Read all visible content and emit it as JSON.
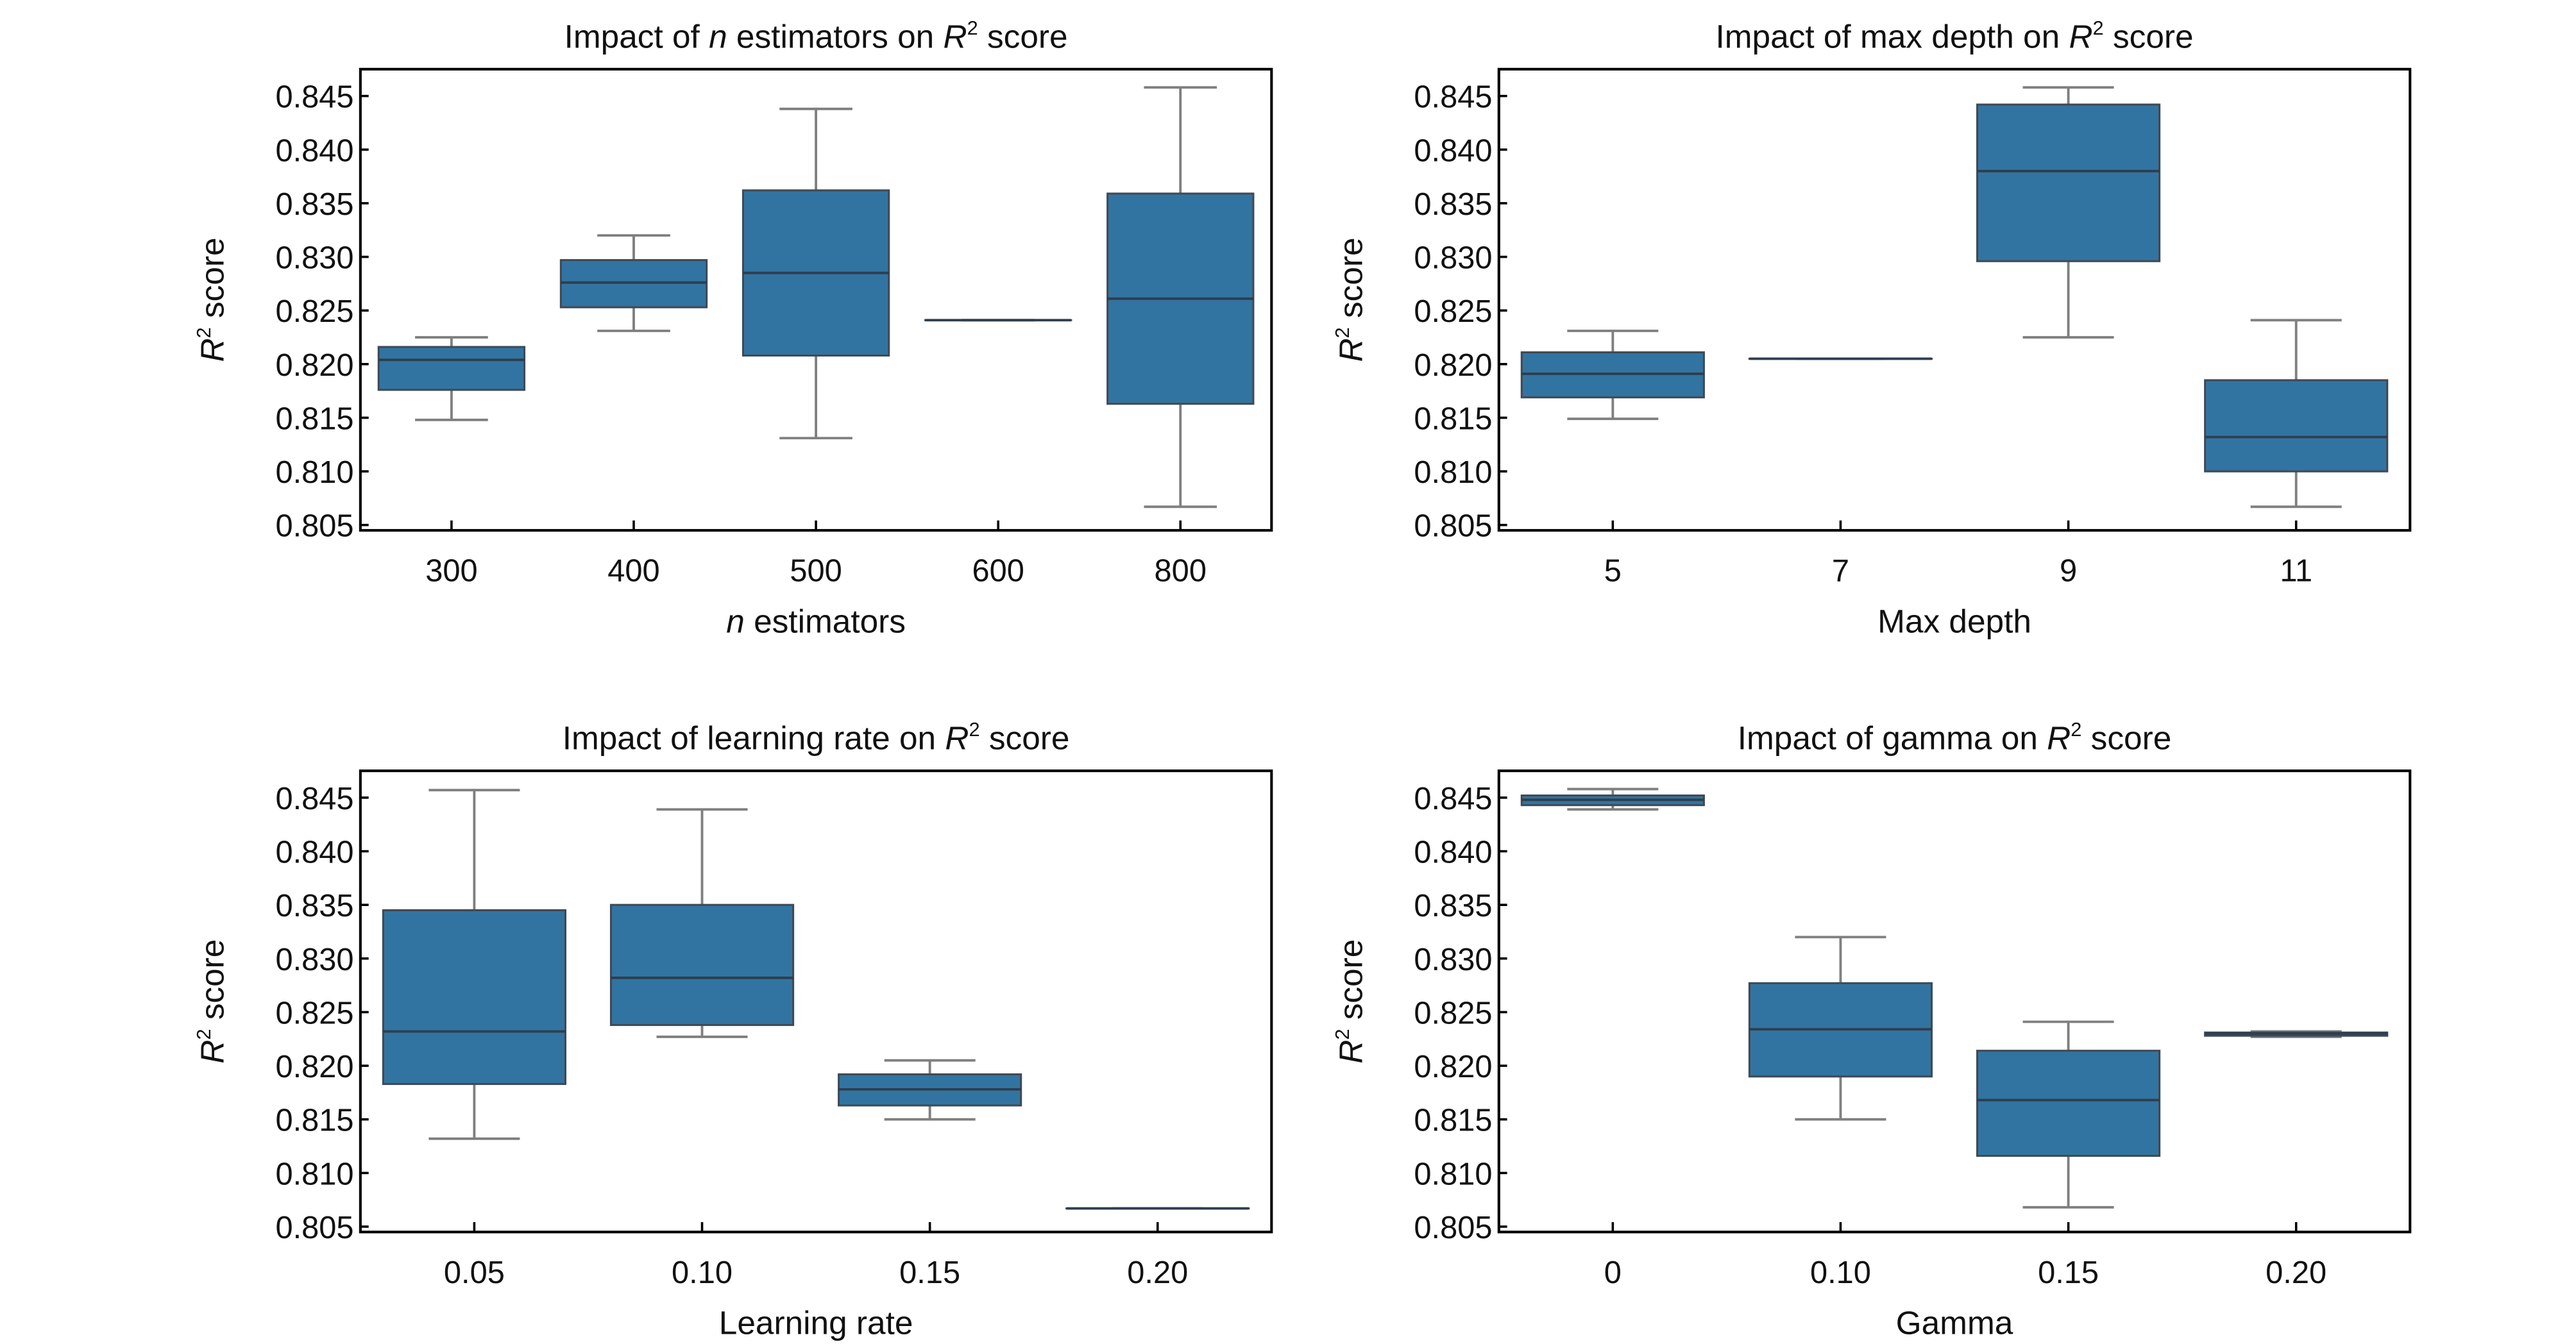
{
  "colors": {
    "box_fill": "#3274a1",
    "box_edge": "#3f4a55",
    "whisker": "#7f7f7f",
    "median": "#2d3e4f",
    "axis": "#000000"
  },
  "chart_data": [
    {
      "type": "box",
      "title": [
        {
          "t": "Impact of "
        },
        {
          "t": "n",
          "i": true
        },
        {
          "t": " estimators on "
        },
        {
          "t": "R",
          "i": true
        },
        {
          "t": "2",
          "sup": true
        },
        {
          "t": " score"
        }
      ],
      "xlabel": [
        {
          "t": "n",
          "i": true
        },
        {
          "t": " estimators"
        }
      ],
      "ylabel": [
        {
          "t": "R",
          "i": true
        },
        {
          "t": "2",
          "sup": true
        },
        {
          "t": " score"
        }
      ],
      "ylim": [
        0.8045,
        0.8475
      ],
      "yticks": [
        "0.805",
        "0.810",
        "0.815",
        "0.820",
        "0.825",
        "0.830",
        "0.835",
        "0.840",
        "0.845"
      ],
      "categories": [
        "300",
        "400",
        "500",
        "600",
        "800"
      ],
      "boxes": [
        {
          "min": 0.8148,
          "q1": 0.8176,
          "median": 0.8204,
          "q3": 0.8216,
          "max": 0.8225
        },
        {
          "min": 0.8231,
          "q1": 0.8253,
          "median": 0.8276,
          "q3": 0.8297,
          "max": 0.832
        },
        {
          "min": 0.8131,
          "q1": 0.8208,
          "median": 0.8285,
          "q3": 0.8362,
          "max": 0.8438
        },
        {
          "min": 0.8241,
          "q1": 0.8241,
          "median": 0.8241,
          "q3": 0.8241,
          "max": 0.8241
        },
        {
          "min": 0.8067,
          "q1": 0.8163,
          "median": 0.8261,
          "q3": 0.8359,
          "max": 0.8458
        }
      ]
    },
    {
      "type": "box",
      "title": [
        {
          "t": "Impact of max depth on "
        },
        {
          "t": "R",
          "i": true
        },
        {
          "t": "2",
          "sup": true
        },
        {
          "t": " score"
        }
      ],
      "xlabel": [
        {
          "t": "Max depth"
        }
      ],
      "ylabel": [
        {
          "t": "R",
          "i": true
        },
        {
          "t": "2",
          "sup": true
        },
        {
          "t": " score"
        }
      ],
      "ylim": [
        0.8045,
        0.8475
      ],
      "yticks": [
        "0.805",
        "0.810",
        "0.815",
        "0.820",
        "0.825",
        "0.830",
        "0.835",
        "0.840",
        "0.845"
      ],
      "categories": [
        "5",
        "7",
        "9",
        "11"
      ],
      "boxes": [
        {
          "min": 0.8149,
          "q1": 0.8169,
          "median": 0.8191,
          "q3": 0.8211,
          "max": 0.8231
        },
        {
          "min": 0.8205,
          "q1": 0.8205,
          "median": 0.8205,
          "q3": 0.8205,
          "max": 0.8205
        },
        {
          "min": 0.8225,
          "q1": 0.8296,
          "median": 0.838,
          "q3": 0.8442,
          "max": 0.8458
        },
        {
          "min": 0.8067,
          "q1": 0.81,
          "median": 0.8132,
          "q3": 0.8185,
          "max": 0.8241
        }
      ]
    },
    {
      "type": "box",
      "title": [
        {
          "t": "Impact of learning rate on "
        },
        {
          "t": "R",
          "i": true
        },
        {
          "t": "2",
          "sup": true
        },
        {
          "t": " score"
        }
      ],
      "xlabel": [
        {
          "t": "Learning rate"
        }
      ],
      "ylabel": [
        {
          "t": "R",
          "i": true
        },
        {
          "t": "2",
          "sup": true
        },
        {
          "t": " score"
        }
      ],
      "ylim": [
        0.8045,
        0.8475
      ],
      "yticks": [
        "0.805",
        "0.810",
        "0.815",
        "0.820",
        "0.825",
        "0.830",
        "0.835",
        "0.840",
        "0.845"
      ],
      "categories": [
        "0.05",
        "0.10",
        "0.15",
        "0.20"
      ],
      "boxes": [
        {
          "min": 0.8132,
          "q1": 0.8183,
          "median": 0.8232,
          "q3": 0.8345,
          "max": 0.8457
        },
        {
          "min": 0.8227,
          "q1": 0.8238,
          "median": 0.8282,
          "q3": 0.835,
          "max": 0.8439
        },
        {
          "min": 0.815,
          "q1": 0.8163,
          "median": 0.8178,
          "q3": 0.8192,
          "max": 0.8205
        },
        {
          "min": 0.8067,
          "q1": 0.8067,
          "median": 0.8067,
          "q3": 0.8067,
          "max": 0.8067
        }
      ]
    },
    {
      "type": "box",
      "title": [
        {
          "t": "Impact of gamma on "
        },
        {
          "t": "R",
          "i": true
        },
        {
          "t": "2",
          "sup": true
        },
        {
          "t": " score"
        }
      ],
      "xlabel": [
        {
          "t": "Gamma"
        }
      ],
      "ylabel": [
        {
          "t": "R",
          "i": true
        },
        {
          "t": "2",
          "sup": true
        },
        {
          "t": " score"
        }
      ],
      "ylim": [
        0.8045,
        0.8475
      ],
      "yticks": [
        "0.805",
        "0.810",
        "0.815",
        "0.820",
        "0.825",
        "0.830",
        "0.835",
        "0.840",
        "0.845"
      ],
      "categories": [
        "0",
        "0.10",
        "0.15",
        "0.20"
      ],
      "boxes": [
        {
          "min": 0.8439,
          "q1": 0.8443,
          "median": 0.8448,
          "q3": 0.8452,
          "max": 0.8458
        },
        {
          "min": 0.815,
          "q1": 0.819,
          "median": 0.8234,
          "q3": 0.8277,
          "max": 0.832
        },
        {
          "min": 0.8068,
          "q1": 0.8116,
          "median": 0.8168,
          "q3": 0.8214,
          "max": 0.8241
        },
        {
          "min": 0.8227,
          "q1": 0.8228,
          "median": 0.823,
          "q3": 0.8231,
          "max": 0.8232
        }
      ]
    }
  ]
}
